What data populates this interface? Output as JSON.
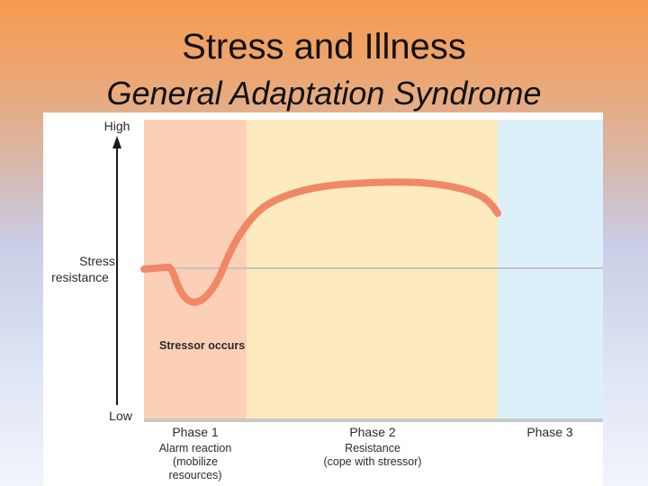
{
  "slide": {
    "title": "Stress and Illness",
    "subtitle": "General Adaptation Syndrome"
  },
  "figure": {
    "y_axis": {
      "high": "High",
      "label_line1": "Stress",
      "label_line2": "resistance",
      "low": "Low"
    },
    "annotation": "Stressor occurs",
    "phases": [
      {
        "label": "Phase 1",
        "desc_lines": [
          "Alarm reaction",
          "(mobilize",
          "resources)"
        ],
        "color": "#fbd0b6"
      },
      {
        "label": "Phase 2",
        "desc_lines": [
          "Resistance",
          "(cope with stressor)"
        ],
        "color": "#fdebbf"
      },
      {
        "label": "Phase 3",
        "desc_lines": [],
        "color": "#dcf0fc"
      }
    ],
    "curve_color": "#f08866",
    "baseline_color": "#c4c4c4"
  }
}
